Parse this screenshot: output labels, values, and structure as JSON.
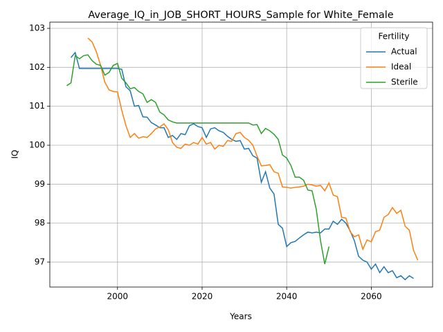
{
  "chart_data": {
    "type": "line",
    "title": "Average_IQ_in_JOB_SHORT_HOURS_Sample for White_Female",
    "xlabel": "Years",
    "ylabel": "IQ",
    "x": [
      1988,
      1989,
      1990,
      1991,
      1992,
      1993,
      1994,
      1995,
      1996,
      1997,
      1998,
      1999,
      2000,
      2001,
      2002,
      2003,
      2004,
      2005,
      2006,
      2007,
      2008,
      2009,
      2010,
      2011,
      2012,
      2013,
      2014,
      2015,
      2016,
      2017,
      2018,
      2019,
      2020,
      2021,
      2022,
      2023,
      2024,
      2025,
      2026,
      2027,
      2028,
      2029,
      2030,
      2031,
      2032,
      2033,
      2034,
      2035,
      2036,
      2037,
      2038,
      2039,
      2040,
      2041,
      2042,
      2043,
      2044,
      2045,
      2046,
      2047,
      2048,
      2049,
      2050,
      2051,
      2052,
      2053,
      2054,
      2055,
      2056,
      2057,
      2058,
      2059,
      2060,
      2061,
      2062,
      2063,
      2064,
      2065,
      2066,
      2067,
      2068,
      2069,
      2070,
      2071
    ],
    "series": [
      {
        "name": "Actual",
        "color": "#1f77b4",
        "values": [
          null,
          102.25,
          102.38,
          101.97,
          101.97,
          101.97,
          101.97,
          101.97,
          101.97,
          101.97,
          101.97,
          101.97,
          101.97,
          101.95,
          101.5,
          101.4,
          101.0,
          101.02,
          100.73,
          100.72,
          100.58,
          100.52,
          100.45,
          100.45,
          100.2,
          100.25,
          100.15,
          100.3,
          100.27,
          100.5,
          100.55,
          100.48,
          100.45,
          100.2,
          100.42,
          100.45,
          100.37,
          100.33,
          100.23,
          100.15,
          100.1,
          100.12,
          99.9,
          99.92,
          99.73,
          99.67,
          99.05,
          99.32,
          98.9,
          98.75,
          97.97,
          97.87,
          97.4,
          97.5,
          97.53,
          97.62,
          97.7,
          97.77,
          97.75,
          97.77,
          97.75,
          97.85,
          97.85,
          98.05,
          97.97,
          98.1,
          98.0,
          97.8,
          97.55,
          97.15,
          97.05,
          97.0,
          96.82,
          96.95,
          96.73,
          96.88,
          96.73,
          96.78,
          96.6,
          96.65,
          96.55,
          96.65,
          96.58,
          null
        ]
      },
      {
        "name": "Ideal",
        "color": "#ff7f0e",
        "values": [
          null,
          null,
          null,
          null,
          null,
          102.75,
          102.65,
          102.4,
          102.05,
          101.62,
          101.42,
          101.38,
          101.37,
          100.9,
          100.5,
          100.2,
          100.3,
          100.18,
          100.22,
          100.2,
          100.3,
          100.42,
          100.47,
          100.55,
          100.4,
          100.07,
          99.95,
          99.92,
          100.03,
          100.0,
          100.07,
          100.03,
          100.2,
          100.03,
          100.07,
          99.9,
          100.0,
          99.97,
          100.12,
          100.1,
          100.3,
          100.33,
          100.2,
          100.13,
          100.0,
          99.72,
          99.47,
          99.48,
          99.5,
          99.32,
          99.28,
          98.93,
          98.92,
          98.9,
          98.92,
          98.93,
          98.95,
          99.0,
          98.98,
          98.95,
          98.97,
          98.83,
          99.03,
          98.72,
          98.68,
          98.15,
          98.13,
          97.78,
          97.65,
          97.7,
          97.33,
          97.57,
          97.52,
          97.78,
          97.82,
          98.15,
          98.22,
          98.4,
          98.25,
          98.33,
          97.92,
          97.82,
          97.3,
          97.05
        ]
      },
      {
        "name": "Sterile",
        "color": "#2ca02c",
        "values": [
          101.53,
          101.6,
          102.3,
          102.22,
          102.3,
          102.32,
          102.17,
          102.08,
          102.05,
          101.8,
          101.87,
          102.05,
          102.1,
          101.72,
          101.6,
          101.45,
          101.48,
          101.38,
          101.32,
          101.1,
          101.17,
          101.1,
          100.85,
          100.78,
          100.65,
          100.6,
          100.57,
          100.57,
          100.57,
          100.57,
          100.57,
          100.57,
          100.57,
          100.57,
          100.57,
          100.57,
          100.57,
          100.57,
          100.57,
          100.57,
          100.57,
          100.57,
          100.57,
          100.57,
          100.52,
          100.53,
          100.3,
          100.43,
          100.37,
          100.28,
          100.15,
          99.75,
          99.67,
          99.48,
          99.18,
          99.18,
          99.1,
          98.85,
          98.83,
          98.35,
          97.55,
          96.95,
          97.4,
          null,
          null,
          null,
          null,
          null,
          null,
          null,
          null,
          null,
          null,
          null,
          null,
          null,
          null,
          null,
          null,
          null,
          null,
          null,
          null,
          null
        ]
      }
    ],
    "xlim": [
      1984,
      2074.5
    ],
    "ylim": [
      96.36,
      103.16
    ],
    "xticks": [
      2000,
      2020,
      2040,
      2060
    ],
    "yticks": [
      97,
      98,
      99,
      100,
      101,
      102,
      103
    ],
    "grid": true,
    "legend_title": "Fertility",
    "legend_loc": "upper right"
  }
}
